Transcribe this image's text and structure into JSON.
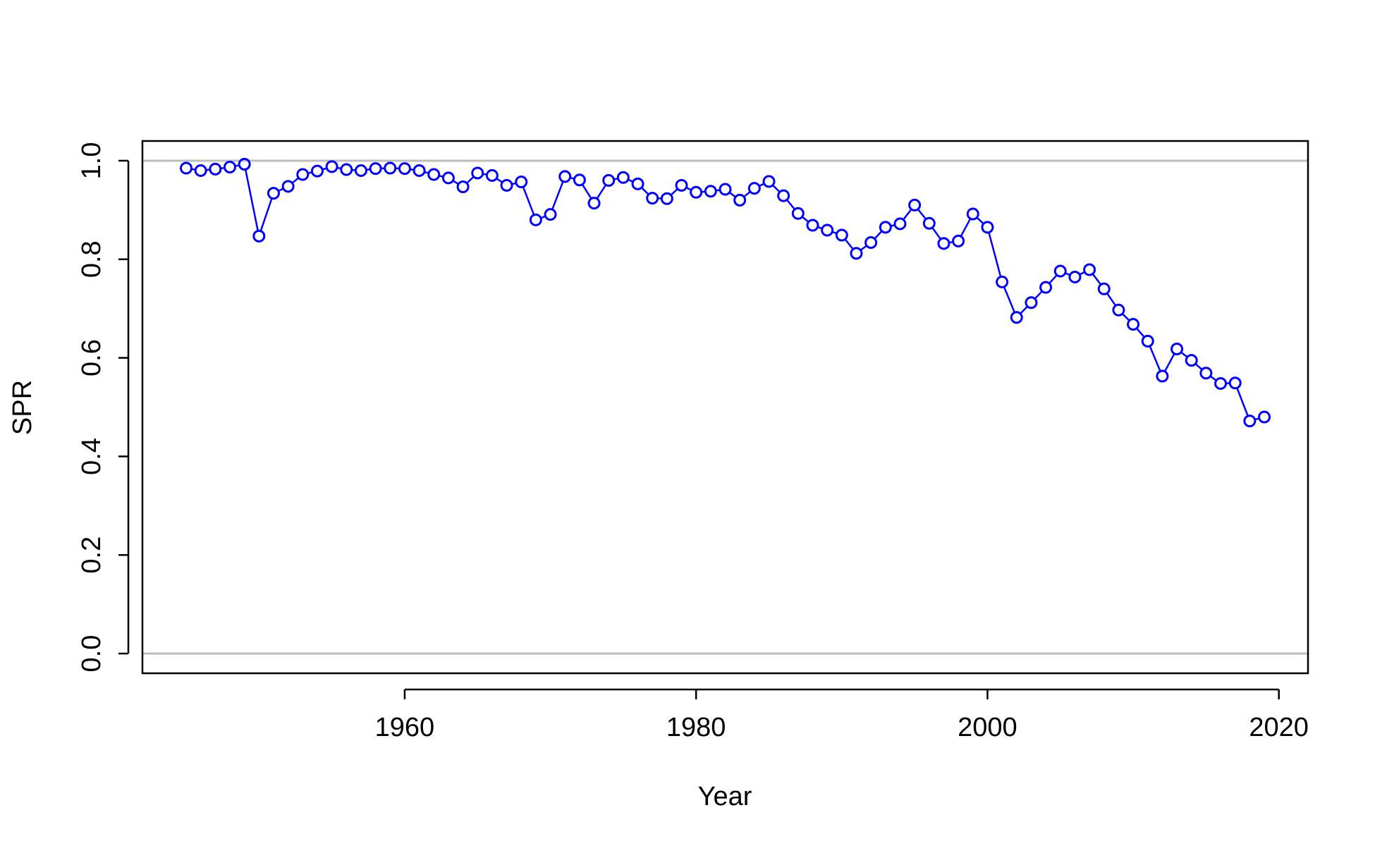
{
  "chart_data": {
    "type": "line",
    "title": "",
    "xlabel": "Year",
    "ylabel": "SPR",
    "xlim": [
      1942,
      2022
    ],
    "ylim": [
      -0.04,
      1.04
    ],
    "x_ticks": [
      "1960",
      "1980",
      "2000",
      "2020"
    ],
    "y_ticks": [
      "0.0",
      "0.2",
      "0.4",
      "0.6",
      "0.8",
      "1.0"
    ],
    "reference_lines": [
      0.0,
      1.0
    ],
    "reference_color": "#bebebe",
    "grid": false,
    "legend": "none",
    "series": [
      {
        "color": "#0000ff",
        "marker": "open-circle",
        "x": [
          1945,
          1946,
          1947,
          1948,
          1949,
          1950,
          1951,
          1952,
          1953,
          1954,
          1955,
          1956,
          1957,
          1958,
          1959,
          1960,
          1961,
          1962,
          1963,
          1964,
          1965,
          1966,
          1967,
          1968,
          1969,
          1970,
          1971,
          1972,
          1973,
          1974,
          1975,
          1976,
          1977,
          1978,
          1979,
          1980,
          1981,
          1982,
          1983,
          1984,
          1985,
          1986,
          1987,
          1988,
          1989,
          1990,
          1991,
          1992,
          1993,
          1994,
          1995,
          1996,
          1997,
          1998,
          1999,
          2000,
          2001,
          2002,
          2003,
          2004,
          2005,
          2006,
          2007,
          2008,
          2009,
          2010,
          2011,
          2012,
          2013,
          2014,
          2015,
          2016,
          2017,
          2018,
          2019
        ],
        "values": [
          0.985,
          0.98,
          0.983,
          0.987,
          0.993,
          0.847,
          0.934,
          0.948,
          0.972,
          0.979,
          0.988,
          0.982,
          0.98,
          0.984,
          0.985,
          0.984,
          0.98,
          0.972,
          0.965,
          0.947,
          0.975,
          0.97,
          0.95,
          0.957,
          0.88,
          0.891,
          0.968,
          0.961,
          0.914,
          0.96,
          0.966,
          0.953,
          0.924,
          0.923,
          0.95,
          0.936,
          0.938,
          0.942,
          0.92,
          0.944,
          0.958,
          0.929,
          0.893,
          0.869,
          0.859,
          0.849,
          0.812,
          0.834,
          0.865,
          0.872,
          0.91,
          0.873,
          0.832,
          0.837,
          0.892,
          0.865,
          0.754,
          0.682,
          0.712,
          0.743,
          0.776,
          0.764,
          0.779,
          0.74,
          0.697,
          0.668,
          0.634,
          0.563,
          0.618,
          0.595,
          0.569,
          0.548,
          0.549,
          0.472,
          0.48
        ]
      }
    ]
  }
}
